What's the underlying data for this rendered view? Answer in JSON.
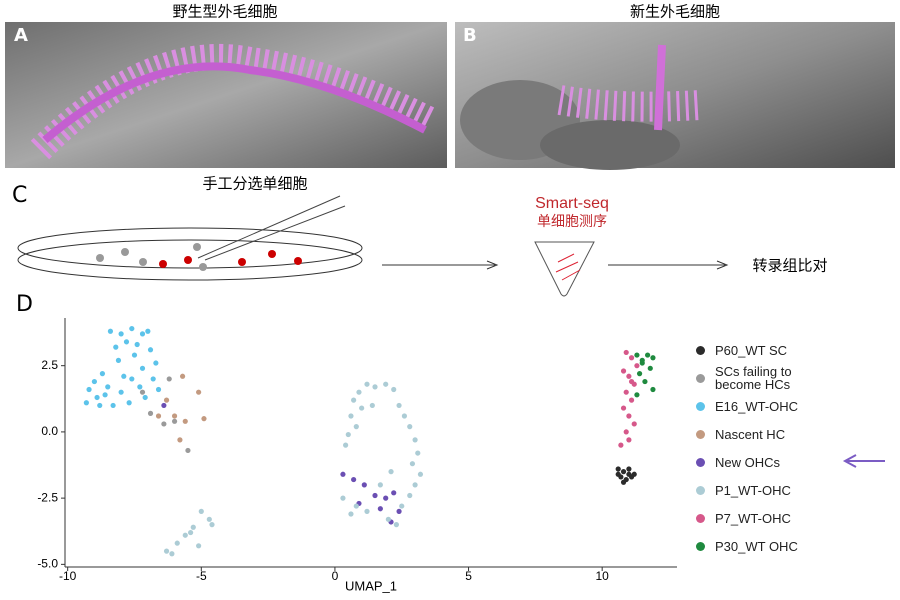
{
  "panels": {
    "a": {
      "label": "A",
      "title": "野生型外毛细胞"
    },
    "b": {
      "label": "B",
      "title": "新生外毛细胞"
    },
    "c": {
      "label": "C",
      "pick": "手工分选单细胞",
      "method": "Smart-seq",
      "method_sub": "单细胞测序",
      "result": "转录组比对"
    },
    "d": {
      "label": "D"
    }
  },
  "chart_data": {
    "type": "scatter",
    "x_label": "UMAP_1",
    "xlim": [
      -10.1,
      12.8
    ],
    "ylim": [
      -5.1,
      4.3
    ],
    "xticks": [
      -10,
      -5,
      0,
      5,
      10
    ],
    "yticks": [
      {
        "value": -5.0,
        "label": "-5.0"
      },
      -2.5,
      {
        "value": 0.0,
        "label": "0.0"
      },
      2.5
    ],
    "series": [
      {
        "name": "P60_WT SC",
        "color": "#2b2b2b",
        "x": [
          10.6,
          10.8,
          11.0,
          11.2,
          10.7,
          10.9,
          11.1,
          10.8,
          11.0,
          10.6
        ],
        "y": [
          -1.4,
          -1.5,
          -1.4,
          -1.6,
          -1.7,
          -1.8,
          -1.7,
          -1.9,
          -1.6,
          -1.6
        ]
      },
      {
        "name": "SCs failing to become HCs",
        "color": "#9a9a9a",
        "x": [
          -6.2,
          -7.2,
          -6.9,
          -6.0,
          -6.4,
          -5.5
        ],
        "y": [
          2.0,
          1.5,
          0.7,
          0.4,
          0.3,
          -0.7
        ]
      },
      {
        "name": "E16_WT-OHC",
        "color": "#5cc3ea",
        "x": [
          -8.4,
          -8.0,
          -7.6,
          -7.2,
          -7.0,
          -7.8,
          -8.2,
          -7.4,
          -6.9,
          -7.5,
          -8.1,
          -8.7,
          -9.0,
          -9.2,
          -8.6,
          -8.0,
          -7.3,
          -6.8,
          -6.6,
          -7.1,
          -7.7,
          -8.3,
          -8.9,
          -9.3,
          -8.5,
          -7.9,
          -7.2,
          -6.7,
          -7.6,
          -8.8
        ],
        "y": [
          3.8,
          3.7,
          3.9,
          3.7,
          3.8,
          3.4,
          3.2,
          3.3,
          3.1,
          2.9,
          2.7,
          2.2,
          1.9,
          1.6,
          1.4,
          1.5,
          1.7,
          2.0,
          1.6,
          1.3,
          1.1,
          1.0,
          1.3,
          1.1,
          1.7,
          2.1,
          2.4,
          2.6,
          2.0,
          1.0
        ]
      },
      {
        "name": "Nascent HC",
        "color": "#c39a80",
        "x": [
          -5.7,
          -5.1,
          -6.3,
          -6.0,
          -5.6,
          -4.9,
          -6.6,
          -5.8
        ],
        "y": [
          2.1,
          1.5,
          1.2,
          0.6,
          0.4,
          0.5,
          0.6,
          -0.3
        ]
      },
      {
        "name": "New OHCs",
        "color": "#6b4fb3",
        "x": [
          -6.4,
          0.3,
          0.7,
          1.1,
          1.5,
          1.9,
          2.2,
          0.9,
          1.7,
          2.4,
          2.1
        ],
        "y": [
          1.0,
          -1.6,
          -1.8,
          -2.0,
          -2.4,
          -2.5,
          -2.3,
          -2.7,
          -2.9,
          -3.0,
          -3.4
        ]
      },
      {
        "name": "P1_WT-OHC",
        "color": "#acccd5",
        "x": [
          0.9,
          1.2,
          1.5,
          1.9,
          2.2,
          0.7,
          1.0,
          1.4,
          0.6,
          0.8,
          0.5,
          0.4,
          2.4,
          2.6,
          2.8,
          3.0,
          3.1,
          2.9,
          3.2,
          3.0,
          2.8,
          2.5,
          1.2,
          0.8,
          0.3,
          0.6,
          2.0,
          2.3,
          1.7,
          2.1,
          -5.0,
          -4.7,
          -5.3,
          -5.6,
          -5.9,
          -6.3,
          -5.1,
          -4.6,
          -6.1,
          -5.4
        ],
        "y": [
          1.5,
          1.8,
          1.7,
          1.8,
          1.6,
          1.2,
          0.9,
          1.0,
          0.6,
          0.2,
          -0.1,
          -0.5,
          1.0,
          0.6,
          0.2,
          -0.3,
          -0.8,
          -1.2,
          -1.6,
          -2.0,
          -2.4,
          -2.8,
          -3.0,
          -2.8,
          -2.5,
          -3.1,
          -3.3,
          -3.5,
          -2.0,
          -1.5,
          -3.0,
          -3.3,
          -3.6,
          -3.9,
          -4.2,
          -4.5,
          -4.3,
          -3.5,
          -4.6,
          -3.8
        ]
      },
      {
        "name": "P7_WT-OHC",
        "color": "#d6588a",
        "x": [
          10.9,
          11.1,
          11.3,
          10.8,
          11.0,
          11.2,
          10.9,
          11.1,
          10.8,
          11.0,
          11.2,
          10.9,
          11.0,
          10.7,
          11.1
        ],
        "y": [
          3.0,
          2.8,
          2.5,
          2.3,
          2.1,
          1.8,
          1.5,
          1.2,
          0.9,
          0.6,
          0.3,
          0.0,
          -0.3,
          -0.5,
          1.9
        ]
      },
      {
        "name": "P30_WT OHC",
        "color": "#1f8a3f",
        "x": [
          11.3,
          11.7,
          11.9,
          11.5,
          11.8,
          11.4,
          11.6,
          11.9,
          11.3,
          11.5
        ],
        "y": [
          2.9,
          2.9,
          2.8,
          2.6,
          2.4,
          2.2,
          1.9,
          1.6,
          1.4,
          2.7
        ]
      }
    ]
  }
}
